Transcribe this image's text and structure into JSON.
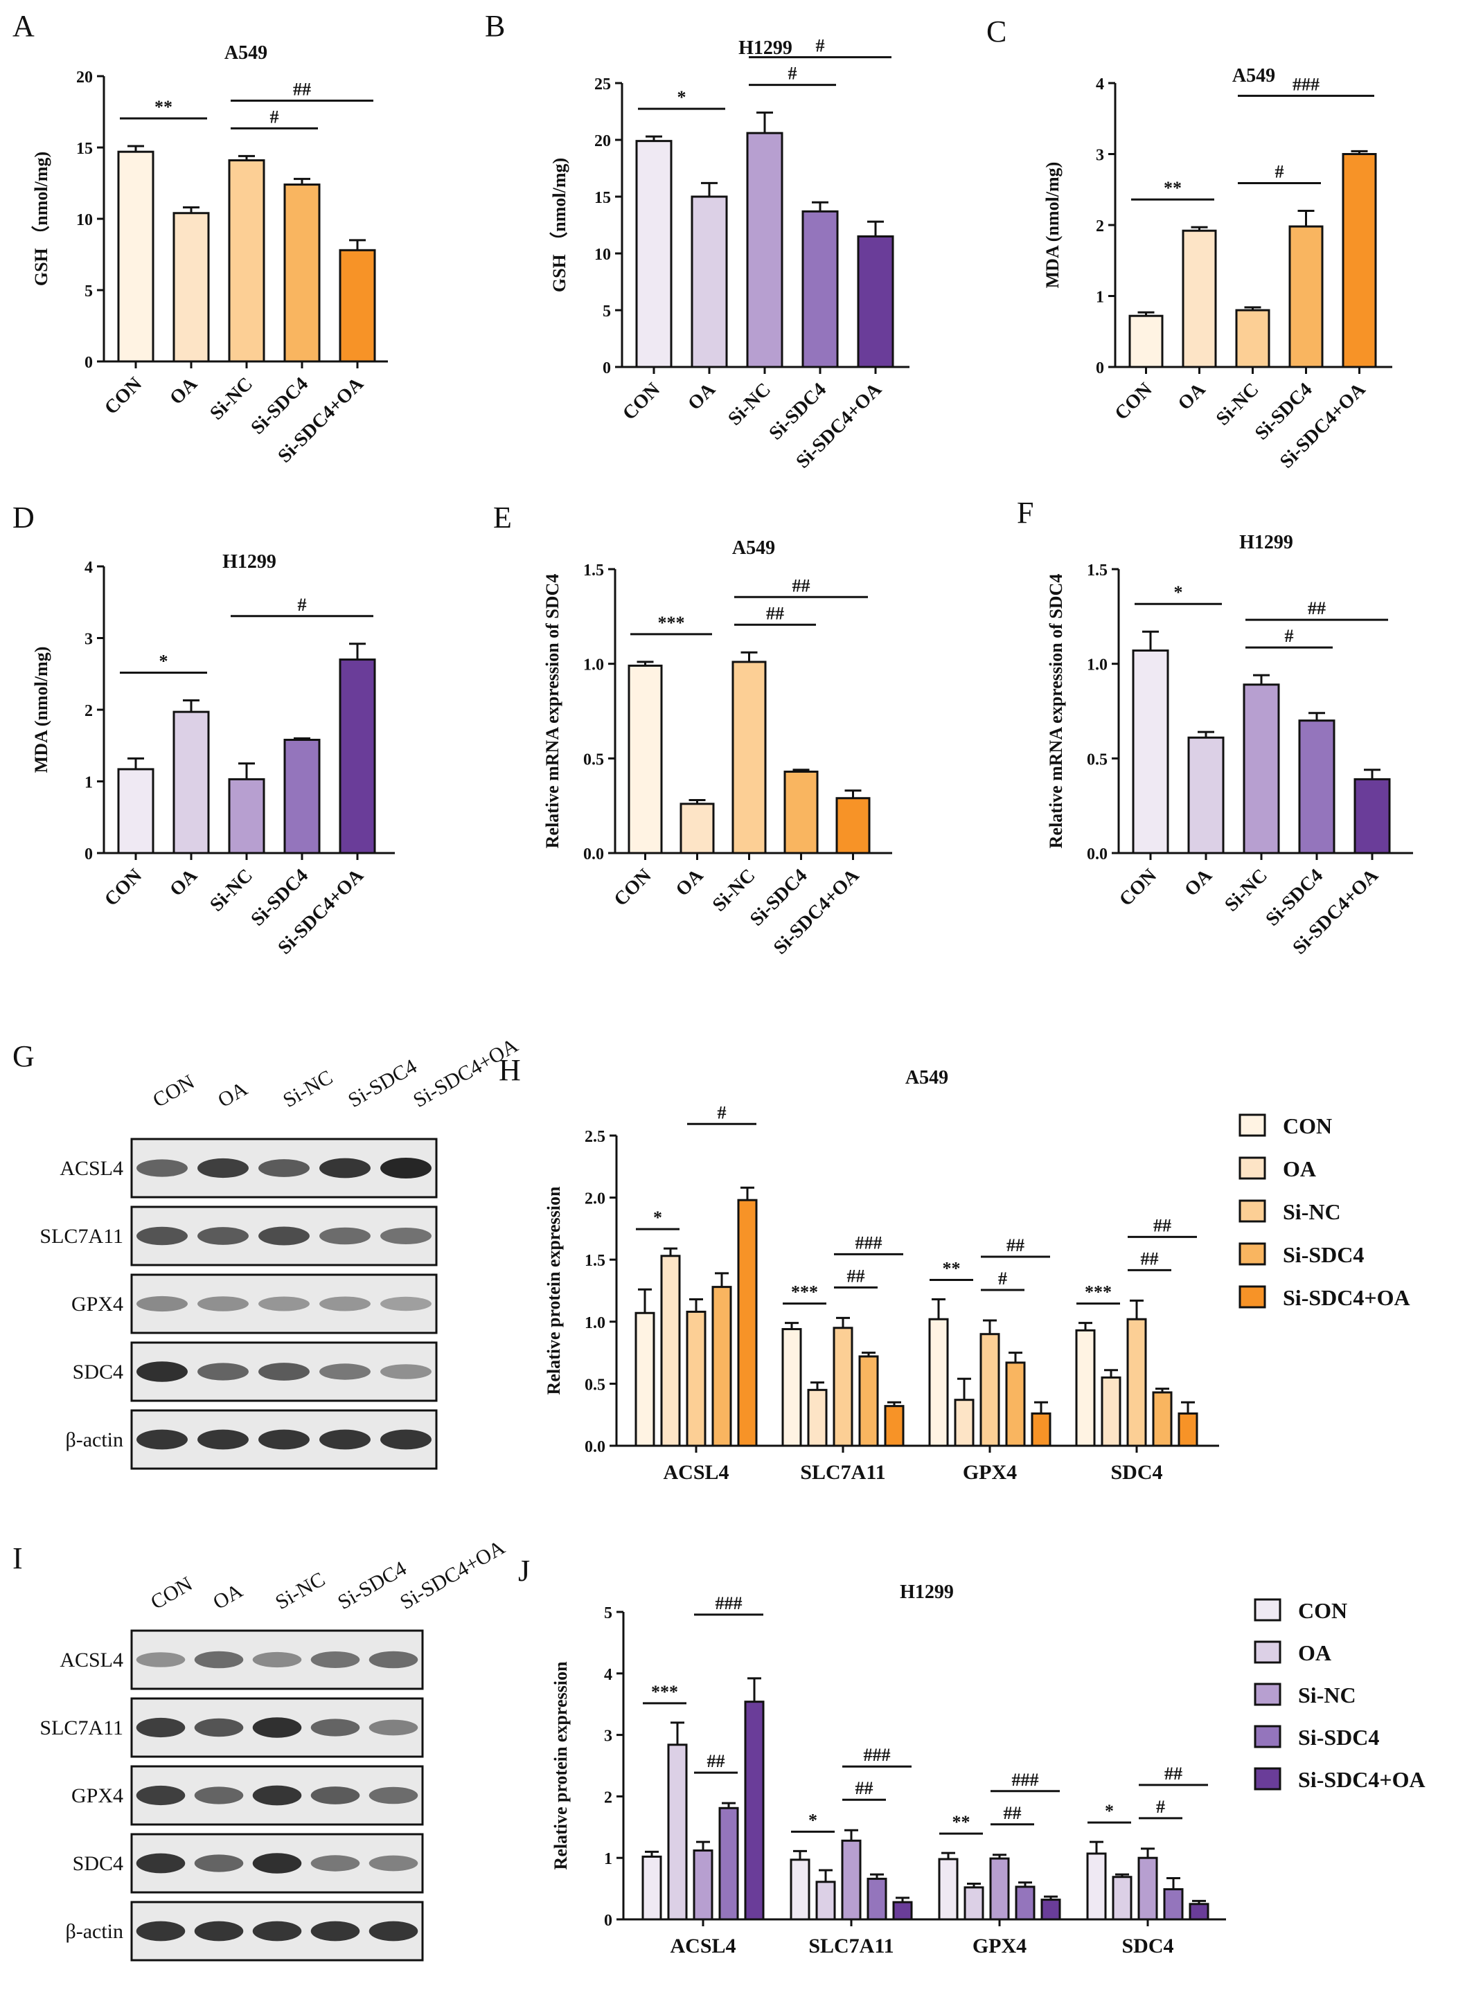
{
  "panel_labels": {
    "A": "A",
    "B": "B",
    "C": "C",
    "D": "D",
    "E": "E",
    "F": "F",
    "G": "G",
    "H": "H",
    "I": "I",
    "J": "J"
  },
  "categories": [
    "CON",
    "OA",
    "Si-NC",
    "Si-SDC4",
    "Si-SDC4+OA"
  ],
  "blots": [
    {
      "panel": "G",
      "lanes": [
        "CON",
        "OA",
        "Si-NC",
        "Si-SDC4",
        "Si-SDC4+OA"
      ],
      "rows": [
        "ACSL4",
        "SLC7A11",
        "GPX4",
        "SDC4",
        "β-actin"
      ]
    },
    {
      "panel": "I",
      "lanes": [
        "CON",
        "OA",
        "Si-NC",
        "Si-SDC4",
        "Si-SDC4+OA"
      ],
      "rows": [
        "ACSL4",
        "SLC7A11",
        "GPX4",
        "SDC4",
        "β-actin"
      ]
    }
  ],
  "chart_data": [
    {
      "panel": "A",
      "type": "bar",
      "title": "A549",
      "ylabel": "GSH （nmol/mg)",
      "ylim": [
        0,
        20
      ],
      "yticks": [
        0,
        5,
        10,
        15,
        20
      ],
      "categories": [
        "CON",
        "OA",
        "Si-NC",
        "Si-SDC4",
        "Si-SDC4+OA"
      ],
      "values": [
        14.7,
        10.4,
        14.1,
        12.4,
        7.8
      ],
      "errors": [
        0.4,
        0.4,
        0.3,
        0.4,
        0.7
      ],
      "colors": [
        "#fff3e3",
        "#fde4c6",
        "#fccf95",
        "#f9b560",
        "#f79327"
      ],
      "annotations": [
        {
          "from": 0,
          "to": 1,
          "text": "**"
        },
        {
          "from": 2,
          "to": 3,
          "text": "#"
        },
        {
          "from": 2,
          "to": 4,
          "text": "##"
        }
      ]
    },
    {
      "panel": "B",
      "type": "bar",
      "title": "H1299",
      "ylabel": "GSH （nmol/mg)",
      "ylim": [
        0,
        25
      ],
      "yticks": [
        0,
        5,
        10,
        15,
        20,
        25
      ],
      "categories": [
        "CON",
        "OA",
        "Si-NC",
        "Si-SDC4",
        "Si-SDC4+OA"
      ],
      "values": [
        19.9,
        15.0,
        20.6,
        13.7,
        11.5
      ],
      "errors": [
        0.4,
        1.2,
        1.8,
        0.8,
        1.3
      ],
      "colors": [
        "#efe9f3",
        "#dcd0e6",
        "#b79fd0",
        "#9475bc",
        "#6a3d99"
      ],
      "annotations": [
        {
          "from": 0,
          "to": 1,
          "text": "*"
        },
        {
          "from": 2,
          "to": 3,
          "text": "#"
        },
        {
          "from": 2,
          "to": 4,
          "text": "#"
        }
      ]
    },
    {
      "panel": "C",
      "type": "bar",
      "title": "A549",
      "ylabel": "MDA (nmol/mg)",
      "ylim": [
        0,
        4
      ],
      "yticks": [
        0,
        1,
        2,
        3,
        4
      ],
      "categories": [
        "CON",
        "OA",
        "Si-NC",
        "Si-SDC4",
        "Si-SDC4+OA"
      ],
      "values": [
        0.72,
        1.92,
        0.8,
        1.98,
        3.0
      ],
      "errors": [
        0.05,
        0.05,
        0.04,
        0.22,
        0.04
      ],
      "colors": [
        "#fff3e3",
        "#fde4c6",
        "#fccf95",
        "#f9b560",
        "#f79327"
      ],
      "annotations": [
        {
          "from": 0,
          "to": 1,
          "text": "**"
        },
        {
          "from": 2,
          "to": 3,
          "text": "#"
        },
        {
          "from": 2,
          "to": 4,
          "text": "###"
        }
      ]
    },
    {
      "panel": "D",
      "type": "bar",
      "title": "H1299",
      "ylabel": "MDA (nmol/mg)",
      "ylim": [
        0,
        4
      ],
      "yticks": [
        0,
        1,
        2,
        3,
        4
      ],
      "categories": [
        "CON",
        "OA",
        "Si-NC",
        "Si-SDC4",
        "Si-SDC4+OA"
      ],
      "values": [
        1.17,
        1.97,
        1.03,
        1.58,
        2.7
      ],
      "errors": [
        0.15,
        0.16,
        0.22,
        0.02,
        0.22
      ],
      "colors": [
        "#efe9f3",
        "#dcd0e6",
        "#b79fd0",
        "#9475bc",
        "#6a3d99"
      ],
      "annotations": [
        {
          "from": 0,
          "to": 1,
          "text": "*"
        },
        {
          "from": 2,
          "to": 4,
          "text": "#"
        }
      ]
    },
    {
      "panel": "E",
      "type": "bar",
      "title": "A549",
      "ylabel": "Relative mRNA expression of SDC4",
      "ylim": [
        0,
        1.5
      ],
      "yticks": [
        "0.0",
        "0.5",
        "1.0",
        "1.5"
      ],
      "categories": [
        "CON",
        "OA",
        "Si-NC",
        "Si-SDC4",
        "Si-SDC4+OA"
      ],
      "values": [
        0.99,
        0.26,
        1.01,
        0.43,
        0.29
      ],
      "errors": [
        0.02,
        0.02,
        0.05,
        0.01,
        0.04
      ],
      "colors": [
        "#fff3e3",
        "#fde4c6",
        "#fccf95",
        "#f9b560",
        "#f79327"
      ],
      "annotations": [
        {
          "from": 0,
          "to": 1,
          "text": "***"
        },
        {
          "from": 2,
          "to": 3,
          "text": "##"
        },
        {
          "from": 2,
          "to": 4,
          "text": "##"
        }
      ]
    },
    {
      "panel": "F",
      "type": "bar",
      "title": "H1299",
      "ylabel": "Relative mRNA expression of SDC4",
      "ylim": [
        0,
        1.5
      ],
      "yticks": [
        "0.0",
        "0.5",
        "1.0",
        "1.5"
      ],
      "categories": [
        "CON",
        "OA",
        "Si-NC",
        "Si-SDC4",
        "Si-SDC4+OA"
      ],
      "values": [
        1.07,
        0.61,
        0.89,
        0.7,
        0.39
      ],
      "errors": [
        0.1,
        0.03,
        0.05,
        0.04,
        0.05
      ],
      "colors": [
        "#efe9f3",
        "#dcd0e6",
        "#b79fd0",
        "#9475bc",
        "#6a3d99"
      ],
      "annotations": [
        {
          "from": 0,
          "to": 1,
          "text": "*"
        },
        {
          "from": 2,
          "to": 3,
          "text": "#"
        },
        {
          "from": 2,
          "to": 4,
          "text": "##"
        }
      ]
    },
    {
      "panel": "H",
      "type": "bar",
      "title": "A549",
      "ylabel": "Relative protein expression",
      "ylim": [
        0,
        2.5
      ],
      "yticks": [
        "0.0",
        "0.5",
        "1.0",
        "1.5",
        "2.0",
        "2.5"
      ],
      "categories": [
        "ACSL4",
        "SLC7A11",
        "GPX4",
        "SDC4"
      ],
      "legend": "right",
      "colors": [
        "#fff3e3",
        "#fde4c6",
        "#fccf95",
        "#f9b560",
        "#f79327"
      ],
      "series": [
        {
          "name": "CON",
          "values": [
            1.07,
            0.94,
            1.02,
            0.93
          ],
          "errors": [
            0.19,
            0.05,
            0.16,
            0.06
          ]
        },
        {
          "name": "OA",
          "values": [
            1.53,
            0.45,
            0.37,
            0.55
          ],
          "errors": [
            0.06,
            0.06,
            0.17,
            0.06
          ]
        },
        {
          "name": "Si-NC",
          "values": [
            1.08,
            0.95,
            0.9,
            1.02
          ],
          "errors": [
            0.1,
            0.08,
            0.11,
            0.15
          ]
        },
        {
          "name": "Si-SDC4",
          "values": [
            1.28,
            0.72,
            0.67,
            0.43
          ],
          "errors": [
            0.11,
            0.03,
            0.08,
            0.03
          ]
        },
        {
          "name": "Si-SDC4+OA",
          "values": [
            1.98,
            0.32,
            0.26,
            0.26
          ],
          "errors": [
            0.1,
            0.03,
            0.09,
            0.09
          ]
        }
      ],
      "annotations": [
        {
          "group": 0,
          "from": 0,
          "to": 1,
          "text": "*"
        },
        {
          "group": 0,
          "from": 2,
          "to": 4,
          "text": "#"
        },
        {
          "group": 1,
          "from": 0,
          "to": 1,
          "text": "***"
        },
        {
          "group": 1,
          "from": 2,
          "to": 3,
          "text": "##"
        },
        {
          "group": 1,
          "from": 2,
          "to": 4,
          "text": "###"
        },
        {
          "group": 2,
          "from": 0,
          "to": 1,
          "text": "**"
        },
        {
          "group": 2,
          "from": 2,
          "to": 3,
          "text": "#"
        },
        {
          "group": 2,
          "from": 2,
          "to": 4,
          "text": "##"
        },
        {
          "group": 3,
          "from": 0,
          "to": 1,
          "text": "***"
        },
        {
          "group": 3,
          "from": 2,
          "to": 3,
          "text": "##"
        },
        {
          "group": 3,
          "from": 2,
          "to": 4,
          "text": "##"
        }
      ]
    },
    {
      "panel": "J",
      "type": "bar",
      "title": "H1299",
      "ylabel": "Relative  protein expression",
      "ylim": [
        0,
        5
      ],
      "yticks": [
        0,
        1,
        2,
        3,
        4,
        5
      ],
      "categories": [
        "ACSL4",
        "SLC7A11",
        "GPX4",
        "SDC4"
      ],
      "legend": "right",
      "colors": [
        "#efe9f3",
        "#dcd0e6",
        "#b79fd0",
        "#9475bc",
        "#6a3d99"
      ],
      "series": [
        {
          "name": "CON",
          "values": [
            1.02,
            0.97,
            0.98,
            1.07
          ],
          "errors": [
            0.08,
            0.14,
            0.1,
            0.19
          ]
        },
        {
          "name": "OA",
          "values": [
            2.84,
            0.61,
            0.52,
            0.69
          ],
          "errors": [
            0.36,
            0.19,
            0.06,
            0.04
          ]
        },
        {
          "name": "Si-NC",
          "values": [
            1.12,
            1.28,
            0.99,
            1.0
          ],
          "errors": [
            0.14,
            0.17,
            0.06,
            0.15
          ]
        },
        {
          "name": "Si-SDC4",
          "values": [
            1.81,
            0.66,
            0.53,
            0.49
          ],
          "errors": [
            0.08,
            0.07,
            0.07,
            0.18
          ]
        },
        {
          "name": "Si-SDC4+OA",
          "values": [
            3.54,
            0.28,
            0.32,
            0.25
          ],
          "errors": [
            0.38,
            0.07,
            0.05,
            0.05
          ]
        }
      ],
      "annotations": [
        {
          "group": 0,
          "from": 0,
          "to": 1,
          "text": "***"
        },
        {
          "group": 0,
          "from": 2,
          "to": 3,
          "text": "##"
        },
        {
          "group": 0,
          "from": 2,
          "to": 4,
          "text": "###"
        },
        {
          "group": 1,
          "from": 0,
          "to": 1,
          "text": "*"
        },
        {
          "group": 1,
          "from": 2,
          "to": 3,
          "text": "##"
        },
        {
          "group": 1,
          "from": 2,
          "to": 4,
          "text": "###"
        },
        {
          "group": 2,
          "from": 0,
          "to": 1,
          "text": "**"
        },
        {
          "group": 2,
          "from": 2,
          "to": 3,
          "text": "##"
        },
        {
          "group": 2,
          "from": 2,
          "to": 4,
          "text": "###"
        },
        {
          "group": 3,
          "from": 0,
          "to": 1,
          "text": "*"
        },
        {
          "group": 3,
          "from": 2,
          "to": 3,
          "text": "#"
        },
        {
          "group": 3,
          "from": 2,
          "to": 4,
          "text": "##"
        }
      ]
    }
  ]
}
